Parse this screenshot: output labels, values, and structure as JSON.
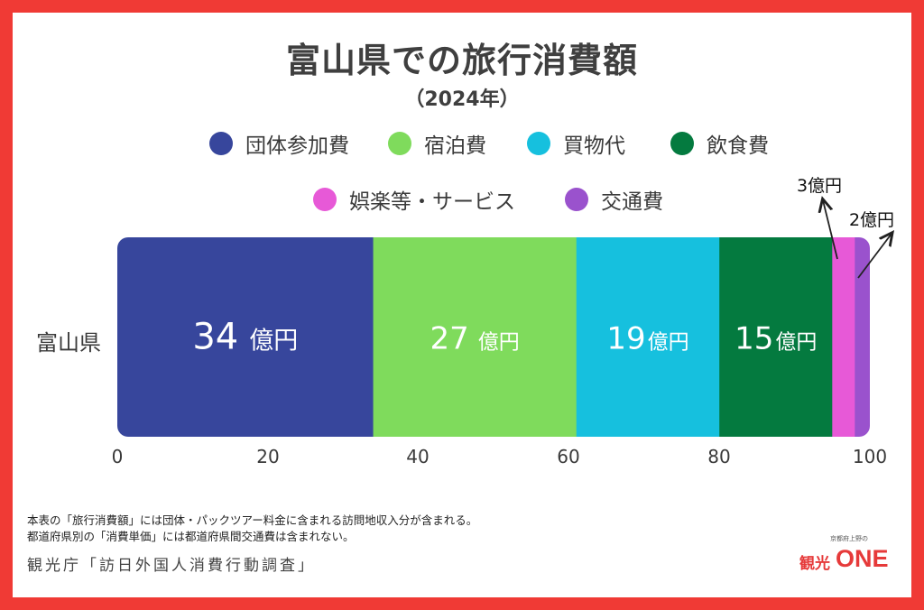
{
  "title": "富山県での旅行消費額",
  "subtitle": "（2024年）",
  "row_label": "富山県",
  "small_callouts": [
    "3億円",
    "2億円"
  ],
  "notes": [
    "本表の「旅行消費額」には団体・パックツアー料金に含まれる訪問地収入分が含まれる。",
    "都道府県別の「消費単価」には都道府県間交通費は含まれない。"
  ],
  "source": "観光庁「訪日外国人消費行動調査」",
  "logo": {
    "top_text": "京都府上野の",
    "left_text": "観光",
    "right_text": "ONE"
  },
  "chart_data": {
    "type": "bar",
    "orientation": "horizontal-stacked",
    "title": "富山県での旅行消費額",
    "subtitle": "（2024年）",
    "categories": [
      "富山県"
    ],
    "xlim": [
      0,
      100
    ],
    "xticks": [
      "0",
      "20",
      "40",
      "60",
      "80",
      "100"
    ],
    "legend_position": "top",
    "series": [
      {
        "name": "団体参加費",
        "values": [
          34
        ],
        "label": "34",
        "unit": "億円",
        "color": "#37469c"
      },
      {
        "name": "宿泊費",
        "values": [
          27
        ],
        "label": "27",
        "unit": "億円",
        "color": "#7fdb5c"
      },
      {
        "name": "買物代",
        "values": [
          19
        ],
        "label": "19",
        "unit": "億円",
        "color": "#16c0de"
      },
      {
        "name": "飲食費",
        "values": [
          15
        ],
        "label": "15",
        "unit": "億円",
        "color": "#047a3f"
      },
      {
        "name": "娯楽等・サービス",
        "values": [
          3
        ],
        "label": "3億円",
        "unit": "",
        "color": "#e759d7"
      },
      {
        "name": "交通費",
        "values": [
          2
        ],
        "label": "2億円",
        "unit": "",
        "color": "#9a52cd"
      }
    ]
  }
}
